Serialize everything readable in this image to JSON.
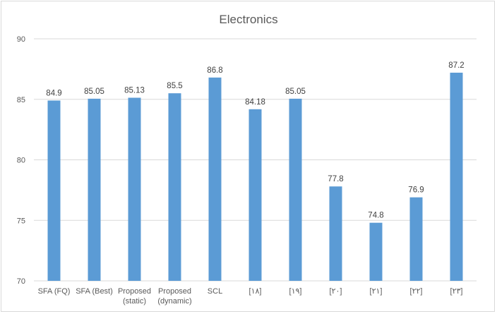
{
  "chart_data": {
    "type": "bar",
    "title": "Electronics",
    "xlabel": "",
    "ylabel": "",
    "ylim": [
      70,
      90
    ],
    "yticks": [
      70,
      75,
      80,
      85,
      90
    ],
    "grid": true,
    "legend": "none",
    "bar_color": "#5b9bd5",
    "categories": [
      [
        "SFA (FQ)"
      ],
      [
        "SFA (Best)"
      ],
      [
        "Proposed",
        "(static)"
      ],
      [
        "Proposed",
        "(dynamic)"
      ],
      [
        "SCL"
      ],
      [
        "[۱۸]"
      ],
      [
        "[۱۹]"
      ],
      [
        "[۲۰]"
      ],
      [
        "[۲۱]"
      ],
      [
        "[۲۲]"
      ],
      [
        "[۲۳]"
      ]
    ],
    "values": [
      84.9,
      85.05,
      85.13,
      85.5,
      86.8,
      84.18,
      85.05,
      77.8,
      74.8,
      76.9,
      87.2
    ],
    "data_labels": [
      "84.9",
      "85.05",
      "85.13",
      "85.5",
      "86.8",
      "84.18",
      "85.05",
      "77.8",
      "74.8",
      "76.9",
      "87.2"
    ]
  }
}
